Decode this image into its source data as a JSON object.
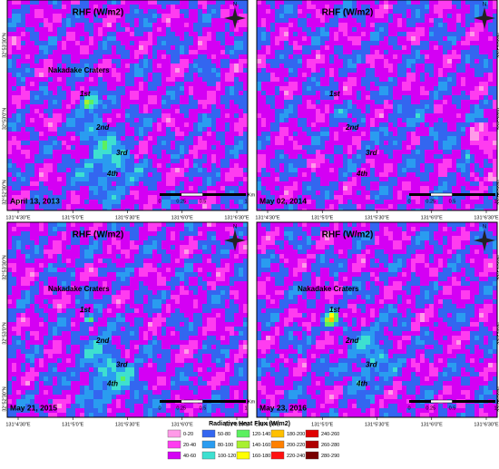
{
  "panels": [
    {
      "title": "RHF (W/m2)",
      "craters_label": "Nakadake Craters",
      "crater_labels": [
        "1st",
        "2nd",
        "3rd",
        "4th"
      ],
      "date": "April 13, 2013",
      "scale_labels": [
        "0",
        "0.25",
        "0.5",
        "1"
      ],
      "scale_unit": "Km",
      "x_labels": [
        "131°4'30\"E",
        "131°5'0\"E",
        "131°5'30\"E",
        "131°6'0\"E",
        "131°6'30\"E"
      ],
      "y_labels": [
        "32°53'30\"N",
        "32°53'0\"N",
        "32°52'30\"N"
      ]
    },
    {
      "title": "RHF (W/m2)",
      "crater_labels": [
        "1st",
        "2nd",
        "3rd",
        "4th"
      ],
      "date": "May 02, 2014",
      "scale_labels": [
        "0",
        "0.25",
        "0.5",
        "1"
      ],
      "scale_unit": "Km",
      "x_labels": [
        "131°4'30\"E",
        "131°5'0\"E",
        "131°5'30\"E",
        "131°6'0\"E",
        "131°6'30\"E"
      ],
      "y_labels": [
        "32°53'30\"N",
        "32°53'0\"N",
        "32°52'30\"N"
      ]
    },
    {
      "title": "RHF (W/m2)",
      "craters_label": "Nakadake Craters",
      "crater_labels": [
        "1st",
        "2nd",
        "3rd",
        "4th"
      ],
      "date": "May 21, 2015",
      "scale_labels": [
        "0",
        "0.25",
        "0.5",
        "1"
      ],
      "scale_unit": "Km",
      "x_labels": [
        "131°4'30\"E",
        "131°5'0\"E",
        "131°5'30\"E",
        "131°6'0\"E",
        "131°6'30\"E"
      ],
      "y_labels": [
        "32°53'30\"N",
        "32°53'0\"N",
        "32°52'30\"N"
      ]
    },
    {
      "title": "RHF (W/m2)",
      "craters_label": "Nakadake Craters",
      "crater_labels": [
        "1st",
        "2nd",
        "3rd",
        "4th"
      ],
      "date": "May 23, 2016",
      "scale_labels": [
        "0",
        "0.25",
        "0.5",
        "1"
      ],
      "scale_unit": "Km",
      "x_labels": [
        "131°4'30\"E",
        "131°5'0\"E",
        "131°5'30\"E",
        "131°6'0\"E",
        "131°6'30\"E"
      ],
      "y_labels": [
        "32°53'30\"N",
        "32°53'0\"N",
        "32°52'30\"N"
      ]
    }
  ],
  "legend": {
    "title": "Radiative Heat Flux (W/m2)",
    "items": [
      {
        "label": "0-20",
        "color": "#ff9ae8"
      },
      {
        "label": "20-40",
        "color": "#ff3cf0"
      },
      {
        "label": "40-60",
        "color": "#d400f4"
      },
      {
        "label": "50-80",
        "color": "#3366f0"
      },
      {
        "label": "80-100",
        "color": "#2a9cf0"
      },
      {
        "label": "100-120",
        "color": "#3ee0d0"
      },
      {
        "label": "120-140",
        "color": "#5cf060"
      },
      {
        "label": "140-160",
        "color": "#a8f030"
      },
      {
        "label": "160-180",
        "color": "#ffff00"
      },
      {
        "label": "180-200",
        "color": "#ffc000"
      },
      {
        "label": "200-220",
        "color": "#ff8000"
      },
      {
        "label": "220-240",
        "color": "#ff1010"
      },
      {
        "label": "240-260",
        "color": "#e00000"
      },
      {
        "label": "260-280",
        "color": "#b00000"
      },
      {
        "label": "280-290",
        "color": "#780000"
      }
    ]
  }
}
